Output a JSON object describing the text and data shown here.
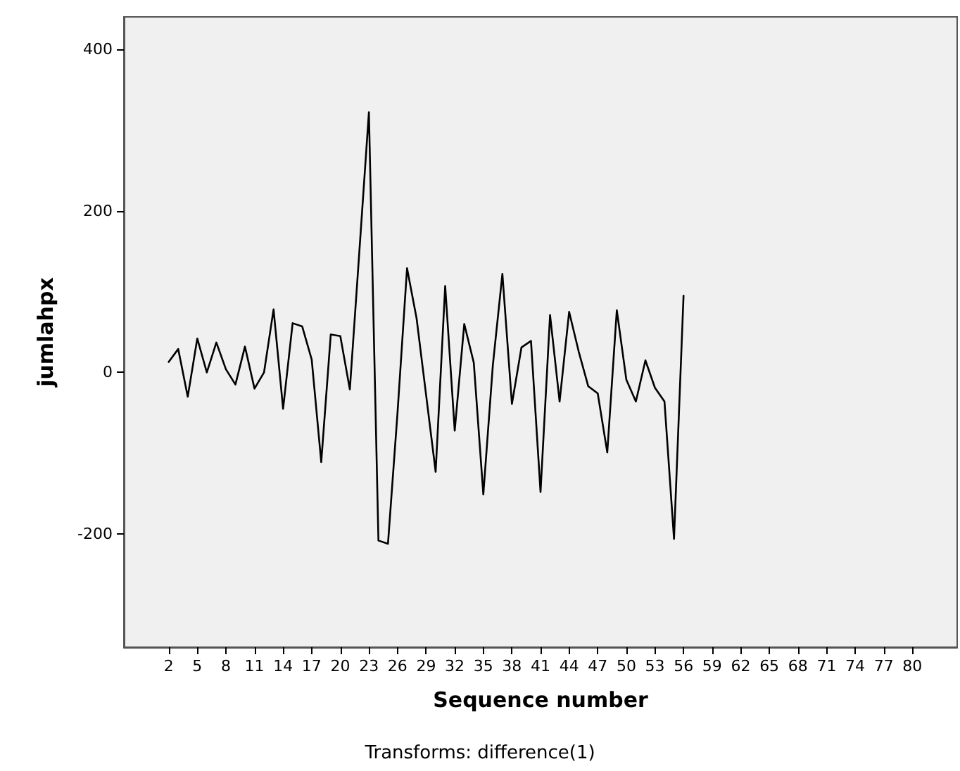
{
  "chart_data": {
    "type": "line",
    "xlabel": "Sequence number",
    "ylabel": "jumlahpx",
    "annotations": [
      "Transforms: difference(1)"
    ],
    "x": [
      2,
      3,
      4,
      5,
      6,
      7,
      8,
      9,
      10,
      11,
      12,
      13,
      14,
      15,
      16,
      17,
      18,
      19,
      20,
      21,
      22,
      23,
      24,
      25,
      26,
      27,
      28,
      29,
      30,
      31,
      32,
      33,
      34,
      35,
      36,
      37,
      38,
      39,
      40,
      41,
      42,
      43,
      44,
      45,
      46,
      47,
      48,
      49,
      50,
      51,
      52,
      53,
      54,
      55,
      56
    ],
    "series": [
      {
        "color": "#000000",
        "values": [
          13,
          29,
          -30,
          42,
          0,
          37,
          4,
          -15,
          32,
          -20,
          0,
          78,
          -45,
          61,
          57,
          16,
          -111,
          47,
          45,
          -21,
          150,
          322,
          -208,
          -212,
          -50,
          129,
          67,
          -28,
          -123,
          107,
          -72,
          60,
          12,
          -151,
          9,
          122,
          -39,
          31,
          39,
          -148,
          71,
          -36,
          75,
          26,
          -17,
          -26,
          -99,
          77,
          -9,
          -36,
          15,
          -19,
          -36,
          -206,
          95
        ]
      }
    ],
    "xlim": [
      -2.7,
      84.7
    ],
    "xticks": [
      2,
      5,
      8,
      11,
      14,
      17,
      20,
      23,
      26,
      29,
      32,
      35,
      38,
      41,
      44,
      47,
      50,
      53,
      56,
      59,
      62,
      65,
      68,
      71,
      74,
      77,
      80
    ],
    "ylim": [
      -340,
      440
    ],
    "yticks": [
      -200,
      0,
      200,
      400
    ],
    "grid": false,
    "marker": "none",
    "line_style": "solid"
  }
}
